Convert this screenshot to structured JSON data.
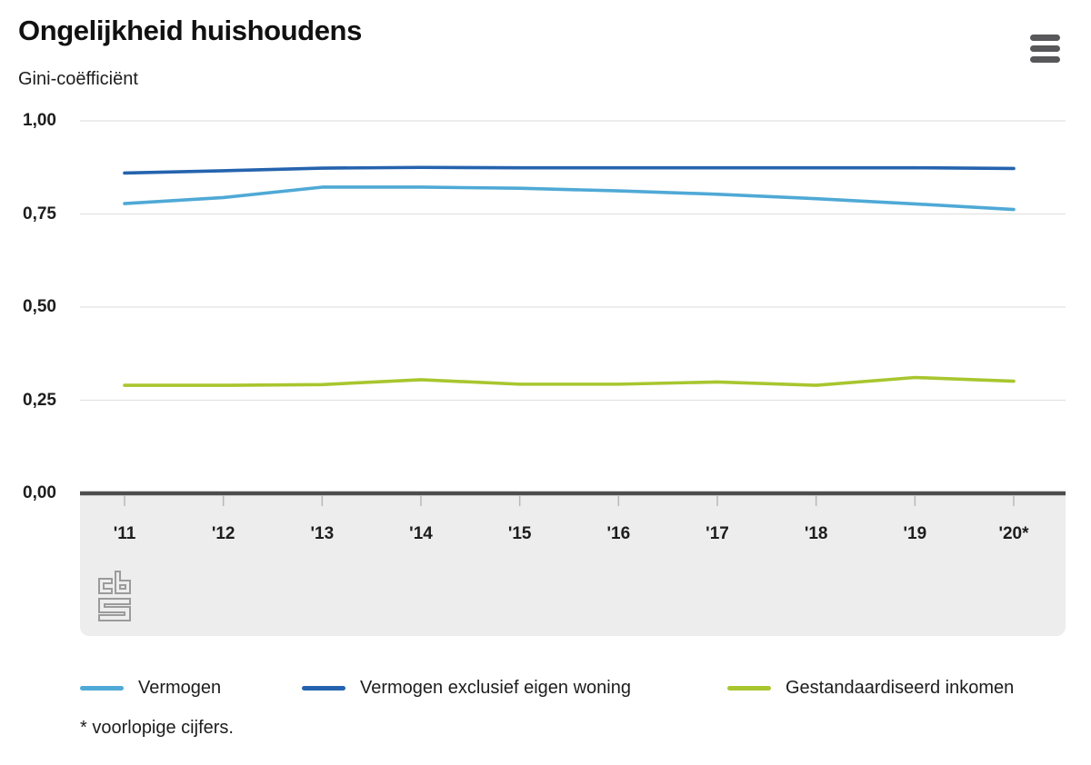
{
  "header": {
    "title": "Ongelijkheid huishoudens",
    "menu_icon": "hamburger-menu"
  },
  "subtitle": "Gini-coëfficiënt",
  "footnote": "* voorlopige cijfers.",
  "logo": "cbs-logo",
  "chart_data": {
    "type": "line",
    "title": "Ongelijkheid huishoudens",
    "subtitle": "Gini-coëfficiënt",
    "xlabel": "",
    "ylabel": "Gini-coëfficiënt",
    "categories": [
      "'11",
      "'12",
      "'13",
      "'14",
      "'15",
      "'16",
      "'17",
      "'18",
      "'19",
      "'20*"
    ],
    "ylim": [
      0,
      1
    ],
    "y_tick_values": [
      0,
      0.25,
      0.5,
      0.75,
      1.0
    ],
    "y_tick_labels": [
      "0,00",
      "0,25",
      "0,50",
      "0,75",
      "1,00"
    ],
    "grid": "horizontal",
    "legend_position": "bottom",
    "series": [
      {
        "name": "Vermogen",
        "color": "#4fa9d6",
        "values": [
          0.778,
          0.794,
          0.822,
          0.822,
          0.819,
          0.812,
          0.803,
          0.791,
          0.777,
          0.762
        ]
      },
      {
        "name": "Vermogen exclusief eigen woning",
        "color": "#2563ae",
        "values": [
          0.86,
          0.866,
          0.873,
          0.875,
          0.874,
          0.874,
          0.874,
          0.874,
          0.874,
          0.872
        ]
      },
      {
        "name": "Gestandaardiseerd inkomen",
        "color": "#a8c62e",
        "values": [
          0.29,
          0.29,
          0.292,
          0.305,
          0.293,
          0.293,
          0.299,
          0.29,
          0.311,
          0.301
        ]
      }
    ],
    "footnote": "* voorlopige cijfers."
  },
  "colors": {
    "grid_line": "#e2e2e2",
    "zero_axis": "#4d4d4d",
    "tick": "#b8b8b8",
    "axis_band": "#ededed",
    "menu_icon": "#58585a",
    "logo": "#9b9b9b",
    "text": "#1d1d1d"
  }
}
